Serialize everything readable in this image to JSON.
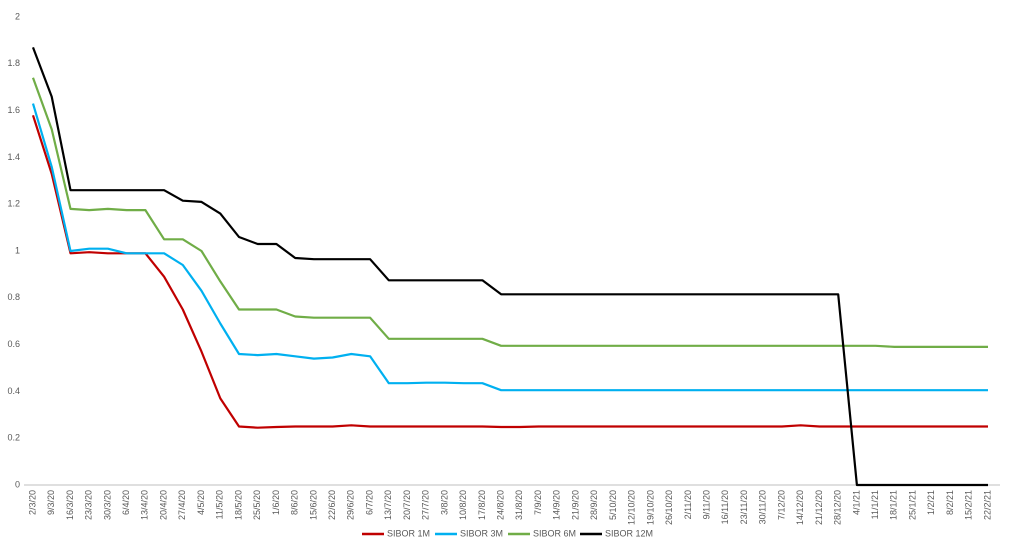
{
  "chart_data": {
    "type": "line",
    "categories": [
      "2/3/20",
      "9/3/20",
      "16/3/20",
      "23/3/20",
      "30/3/20",
      "6/4/20",
      "13/4/20",
      "20/4/20",
      "27/4/20",
      "4/5/20",
      "11/5/20",
      "18/5/20",
      "25/5/20",
      "1/6/20",
      "8/6/20",
      "15/6/20",
      "22/6/20",
      "29/6/20",
      "6/7/20",
      "13/7/20",
      "20/7/20",
      "27/7/20",
      "3/8/20",
      "10/8/20",
      "17/8/20",
      "24/8/20",
      "31/8/20",
      "7/9/20",
      "14/9/20",
      "21/9/20",
      "28/9/20",
      "5/10/20",
      "12/10/20",
      "19/10/20",
      "26/10/20",
      "2/11/20",
      "9/11/20",
      "16/11/20",
      "23/11/20",
      "30/11/20",
      "7/12/20",
      "14/12/20",
      "21/12/20",
      "28/12/20",
      "4/1/21",
      "11/1/21",
      "18/1/21",
      "25/1/21",
      "1/2/21",
      "8/2/21",
      "15/2/21",
      "22/2/21"
    ],
    "series": [
      {
        "name": "SIBOR 1M",
        "color": "#c00000",
        "values": [
          1.58,
          1.33,
          0.99,
          0.995,
          0.99,
          0.99,
          0.99,
          0.89,
          0.75,
          0.57,
          0.37,
          0.25,
          0.245,
          0.248,
          0.25,
          0.25,
          0.25,
          0.255,
          0.25,
          0.25,
          0.25,
          0.25,
          0.25,
          0.25,
          0.25,
          0.248,
          0.248,
          0.25,
          0.25,
          0.25,
          0.25,
          0.25,
          0.25,
          0.25,
          0.25,
          0.25,
          0.25,
          0.25,
          0.25,
          0.25,
          0.25,
          0.255,
          0.25,
          0.25,
          0.25,
          0.25,
          0.25,
          0.25,
          0.25,
          0.25,
          0.25,
          0.25
        ]
      },
      {
        "name": "SIBOR 3M",
        "color": "#00b0f0",
        "values": [
          1.63,
          1.36,
          1.0,
          1.01,
          1.01,
          0.99,
          0.99,
          0.99,
          0.94,
          0.83,
          0.69,
          0.56,
          0.555,
          0.56,
          0.55,
          0.54,
          0.545,
          0.56,
          0.55,
          0.435,
          0.435,
          0.437,
          0.437,
          0.435,
          0.435,
          0.405,
          0.405,
          0.405,
          0.405,
          0.405,
          0.405,
          0.405,
          0.405,
          0.405,
          0.405,
          0.405,
          0.405,
          0.405,
          0.405,
          0.405,
          0.405,
          0.405,
          0.405,
          0.405,
          0.405,
          0.405,
          0.405,
          0.405,
          0.405,
          0.405,
          0.405,
          0.405
        ]
      },
      {
        "name": "SIBOR 6M",
        "color": "#70ad47",
        "values": [
          1.74,
          1.52,
          1.18,
          1.175,
          1.18,
          1.175,
          1.175,
          1.05,
          1.05,
          1.0,
          0.87,
          0.75,
          0.75,
          0.75,
          0.72,
          0.715,
          0.715,
          0.715,
          0.715,
          0.625,
          0.625,
          0.625,
          0.625,
          0.625,
          0.625,
          0.595,
          0.595,
          0.595,
          0.595,
          0.595,
          0.595,
          0.595,
          0.595,
          0.595,
          0.595,
          0.595,
          0.595,
          0.595,
          0.595,
          0.595,
          0.595,
          0.595,
          0.595,
          0.595,
          0.595,
          0.595,
          0.59,
          0.59,
          0.59,
          0.59,
          0.59,
          0.59
        ]
      },
      {
        "name": "SIBOR 12M",
        "color": "#000000",
        "values": [
          1.87,
          1.66,
          1.26,
          1.26,
          1.26,
          1.26,
          1.26,
          1.26,
          1.215,
          1.21,
          1.16,
          1.06,
          1.03,
          1.03,
          0.97,
          0.965,
          0.965,
          0.965,
          0.965,
          0.875,
          0.875,
          0.875,
          0.875,
          0.875,
          0.875,
          0.815,
          0.815,
          0.815,
          0.815,
          0.815,
          0.815,
          0.815,
          0.815,
          0.815,
          0.815,
          0.815,
          0.815,
          0.815,
          0.815,
          0.815,
          0.815,
          0.815,
          0.815,
          0.815,
          0,
          0,
          0,
          0,
          0,
          0,
          0,
          0
        ]
      }
    ],
    "ylim": [
      0,
      2
    ],
    "yticks": [
      0,
      0.2,
      0.4,
      0.6,
      0.8,
      1,
      1.2,
      1.4,
      1.6,
      1.8,
      2
    ],
    "grid": false,
    "legend": "bottom"
  }
}
